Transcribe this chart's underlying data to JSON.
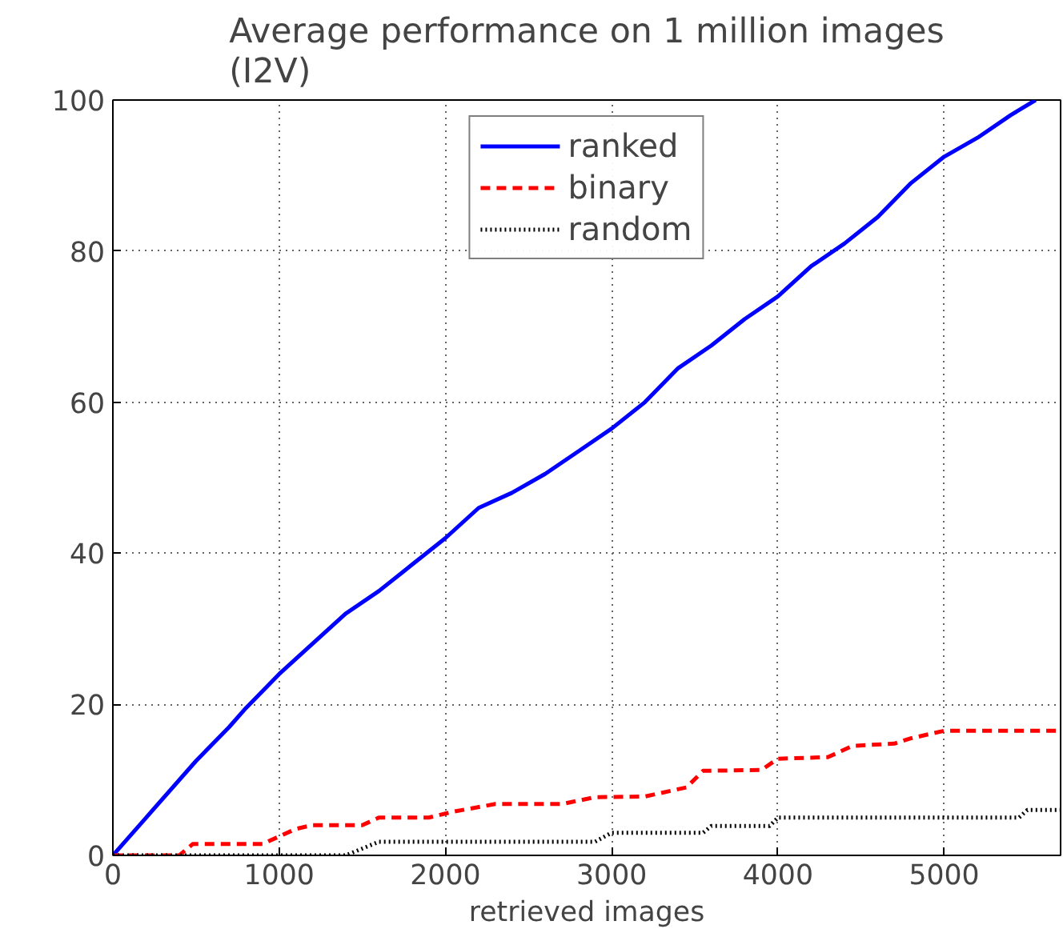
{
  "chart_data": {
    "type": "line",
    "title": "Average performance on 1 million images\n(I2V)",
    "xlabel": "retrieved images",
    "xlim": [
      0,
      5700
    ],
    "ylim": [
      0,
      100
    ],
    "xticks": [
      0,
      1000,
      2000,
      3000,
      4000,
      5000
    ],
    "yticks": [
      0,
      20,
      40,
      60,
      80,
      100
    ],
    "grid": true,
    "legend": "top",
    "series": [
      {
        "name": "ranked",
        "color": "#0000ff",
        "line_style": "solid",
        "x": [
          0,
          200,
          500,
          700,
          800,
          1000,
          1200,
          1400,
          1600,
          1800,
          2000,
          2200,
          2400,
          2600,
          2800,
          3000,
          3200,
          3400,
          3600,
          3800,
          4000,
          4200,
          4400,
          4600,
          4800,
          5000,
          5200,
          5400,
          5550
        ],
        "values": [
          0,
          5,
          12.5,
          17,
          19.5,
          24,
          28,
          32,
          35,
          38.5,
          42,
          46,
          48,
          50.5,
          53.5,
          56.5,
          60,
          64.5,
          67.5,
          71,
          74,
          78,
          81,
          84.5,
          89,
          92.5,
          95,
          98,
          100
        ]
      },
      {
        "name": "binary",
        "color": "#ff0000",
        "line_style": "dashed",
        "x": [
          0,
          400,
          480,
          900,
          1000,
          1100,
          1200,
          1500,
          1600,
          1900,
          2050,
          2300,
          2700,
          2900,
          3200,
          3450,
          3550,
          3900,
          4000,
          4300,
          4450,
          4700,
          4800,
          5000,
          5700
        ],
        "values": [
          0,
          0,
          1.5,
          1.5,
          2.5,
          3.5,
          4,
          4,
          5,
          5,
          5.8,
          6.8,
          6.8,
          7.7,
          7.8,
          9,
          11.2,
          11.3,
          12.8,
          13,
          14.5,
          14.8,
          15.5,
          16.5,
          16.5
        ]
      },
      {
        "name": "random",
        "color": "#000000",
        "line_style": "dotted",
        "x": [
          0,
          1400,
          1600,
          2900,
          3000,
          3550,
          3600,
          3950,
          4000,
          5450,
          5500,
          5700
        ],
        "values": [
          0,
          0,
          1.8,
          1.8,
          3,
          3,
          3.9,
          3.9,
          5,
          5,
          6,
          6
        ]
      }
    ]
  }
}
